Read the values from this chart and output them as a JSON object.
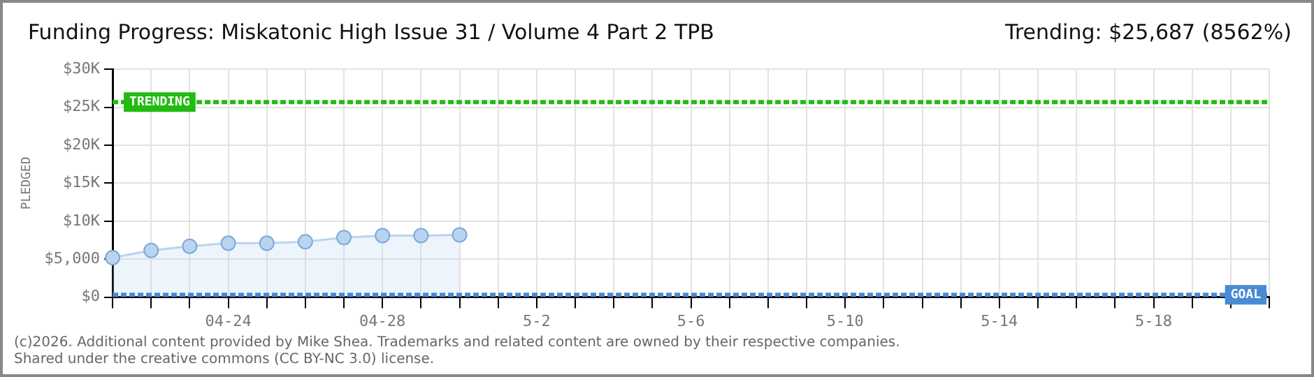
{
  "chart_data": {
    "type": "area",
    "title": "Funding Progress: Miskatonic High Issue 31 / Volume 4 Part 2 TPB",
    "subtitle": "Trending: $25,687 (8562%)",
    "ylabel": "PLEDGED",
    "categories": [
      null,
      null,
      null,
      "04-24",
      null,
      null,
      null,
      "04-28",
      null,
      null,
      null,
      "5-2",
      null,
      null,
      null,
      "5-6",
      null,
      null,
      null,
      "5-10",
      null,
      null,
      null,
      "5-14",
      null,
      null,
      null,
      "5-18",
      null,
      null,
      null
    ],
    "series": [
      {
        "color": "#b8d4f0",
        "values": [
          5200,
          6150,
          6700,
          7100,
          7100,
          7300,
          7850,
          8100,
          8100,
          8200,
          null,
          null,
          null,
          null,
          null,
          null,
          null,
          null,
          null,
          null,
          null,
          null,
          null,
          null,
          null,
          null,
          null,
          null,
          null,
          null,
          null
        ]
      }
    ],
    "ylim": [
      0,
      30000
    ],
    "yticks": [
      {
        "value": 0,
        "label": "$0"
      },
      {
        "value": 5000,
        "label": "$5,000"
      },
      {
        "value": 10000,
        "label": "$10K"
      },
      {
        "value": 15000,
        "label": "$15K"
      },
      {
        "value": 20000,
        "label": "$20K"
      },
      {
        "value": 25000,
        "label": "$25K"
      },
      {
        "value": 30000,
        "label": "$30K"
      }
    ],
    "ref_lines": [
      {
        "axis": "y",
        "value": 25687,
        "label": "TRENDING",
        "color": "#22bb11",
        "line_style": "dashed"
      },
      {
        "axis": "y",
        "value": 300,
        "label": "GOAL",
        "color": "#4a8ad4",
        "line_style": "dashed"
      }
    ],
    "annotations": [
      "(c)2026. Additional content provided by Mike Shea. Trademarks and related content are owned by their respective companies.",
      "Shared under the creative commons (CC BY-NC 3.0) license."
    ],
    "grid": true,
    "legend": false,
    "marker": "circle"
  }
}
